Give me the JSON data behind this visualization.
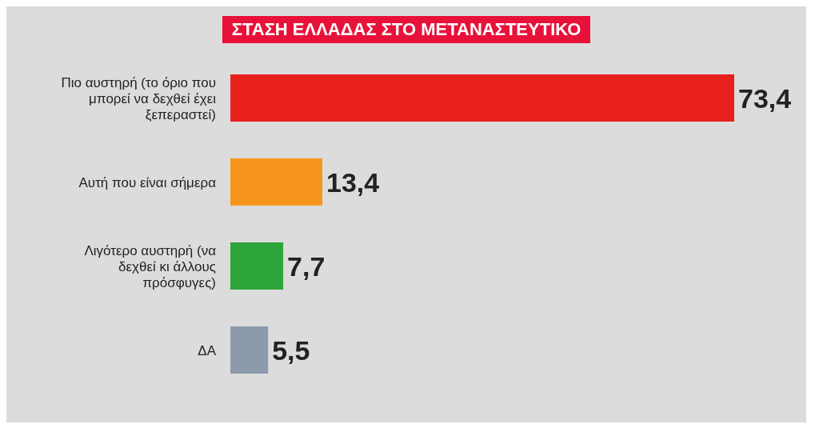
{
  "chart_data": {
    "type": "bar",
    "orientation": "horizontal",
    "title": "ΣΤΑΣΗ ΕΛΛΑΔΑΣ ΣΤΟ ΜΕΤΑΝΑΣΤΕΥΤΙΚΟ",
    "categories": [
      "Πιο αυστηρή (το όριο που μπορεί να δεχθεί έχει ξεπεραστεί)",
      "Αυτή που είναι σήμερα",
      "Λιγότερο αυστηρή (να δεχθεί κι άλλους πρόσφυγες)",
      "ΔΑ"
    ],
    "values": [
      73.4,
      13.4,
      7.7,
      5.5
    ],
    "colors": [
      "#e8201c",
      "#f7941d",
      "#2ea53a",
      "#8c9aab"
    ],
    "value_labels": [
      "73,4",
      "13,4",
      "7,7",
      "5,5"
    ]
  }
}
